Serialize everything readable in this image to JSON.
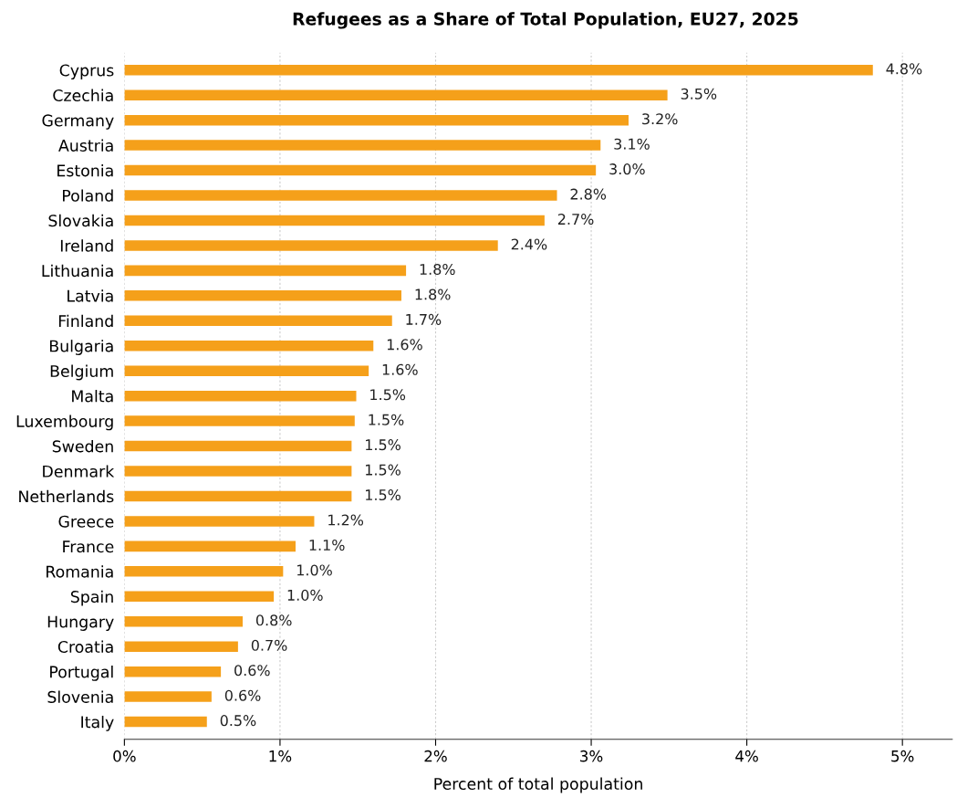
{
  "chart_data": {
    "type": "bar",
    "orientation": "horizontal",
    "title": "Refugees as a Share of Total Population, EU27, 2025",
    "xlabel": "Percent of total population",
    "categories": [
      "Cyprus",
      "Czechia",
      "Germany",
      "Austria",
      "Estonia",
      "Poland",
      "Slovakia",
      "Ireland",
      "Lithuania",
      "Latvia",
      "Finland",
      "Bulgaria",
      "Belgium",
      "Malta",
      "Luxembourg",
      "Sweden",
      "Denmark",
      "Netherlands",
      "Greece",
      "France",
      "Romania",
      "Spain",
      "Hungary",
      "Croatia",
      "Portugal",
      "Slovenia",
      "Italy"
    ],
    "values": [
      4.81,
      3.49,
      3.24,
      3.06,
      3.03,
      2.78,
      2.7,
      2.4,
      1.81,
      1.78,
      1.72,
      1.6,
      1.57,
      1.49,
      1.48,
      1.46,
      1.46,
      1.46,
      1.22,
      1.1,
      1.02,
      0.96,
      0.76,
      0.73,
      0.62,
      0.56,
      0.53
    ],
    "value_labels": [
      "4.8%",
      "3.5%",
      "3.2%",
      "3.1%",
      "3.0%",
      "2.8%",
      "2.7%",
      "2.4%",
      "1.8%",
      "1.8%",
      "1.7%",
      "1.6%",
      "1.6%",
      "1.5%",
      "1.5%",
      "1.5%",
      "1.5%",
      "1.5%",
      "1.2%",
      "1.1%",
      "1.0%",
      "1.0%",
      "0.8%",
      "0.7%",
      "0.6%",
      "0.6%",
      "0.5%"
    ],
    "color": "#f5a01a",
    "xlim": [
      0,
      5.32
    ],
    "xticks": [
      {
        "value": 0,
        "label": "0%"
      },
      {
        "value": 1,
        "label": "1%"
      },
      {
        "value": 2,
        "label": "2%"
      },
      {
        "value": 3,
        "label": "3%"
      },
      {
        "value": 4,
        "label": "4%"
      },
      {
        "value": 5,
        "label": "5%"
      }
    ],
    "grid": "x"
  }
}
